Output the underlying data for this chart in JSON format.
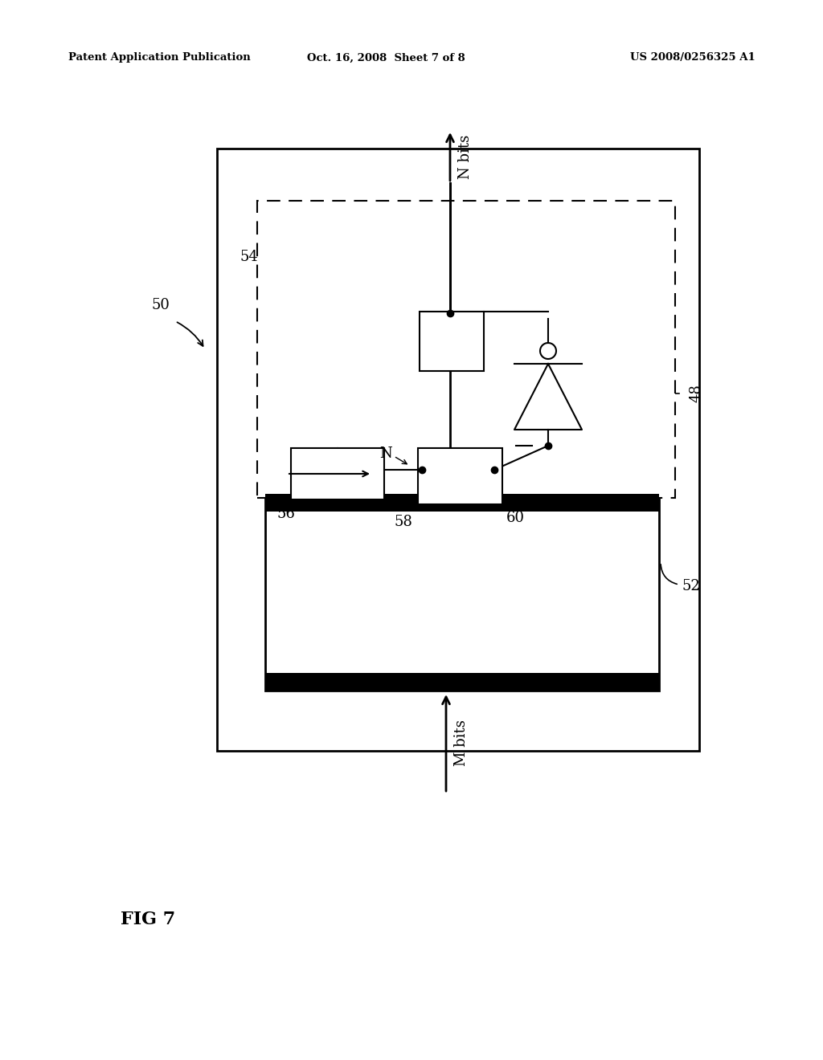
{
  "bg_color": "#ffffff",
  "header_left": "Patent Application Publication",
  "header_center": "Oct. 16, 2008  Sheet 7 of 8",
  "header_right": "US 2008/0256325 A1",
  "fig_label": "FIG 7",
  "label_50": "50",
  "label_52": "52",
  "label_54": "54",
  "label_56": "56",
  "label_58": "58",
  "label_60": "60",
  "label_48": "48",
  "label_N": "N",
  "label_Nbits": "N bits",
  "label_Mbits": "M bits"
}
